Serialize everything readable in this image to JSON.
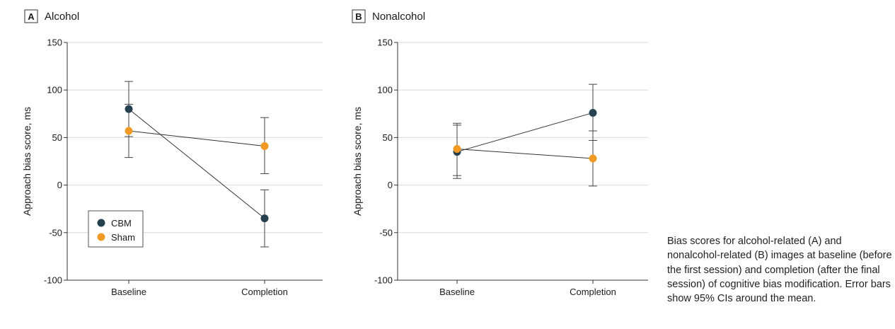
{
  "chart_data": [
    {
      "type": "line",
      "panel_letter": "A",
      "title": "Alcohol",
      "xlabel": "",
      "ylabel": "Approach bias score, ms",
      "categories": [
        "Baseline",
        "Completion"
      ],
      "ylim": [
        -100,
        150
      ],
      "yticks": [
        -100,
        -50,
        0,
        50,
        100,
        150
      ],
      "grid": true,
      "legend": "bottom-left",
      "series": [
        {
          "name": "CBM",
          "color": "#25404f",
          "values": [
            80,
            -35
          ],
          "ci_low": [
            51,
            -65
          ],
          "ci_high": [
            109,
            -5
          ]
        },
        {
          "name": "Sham",
          "color": "#f39a26",
          "values": [
            57,
            41
          ],
          "ci_low": [
            29,
            12
          ],
          "ci_high": [
            85,
            71
          ]
        }
      ]
    },
    {
      "type": "line",
      "panel_letter": "B",
      "title": "Nonalcohol",
      "xlabel": "",
      "ylabel": "Approach bias score, ms",
      "categories": [
        "Baseline",
        "Completion"
      ],
      "ylim": [
        -100,
        150
      ],
      "yticks": [
        -100,
        -50,
        0,
        50,
        100,
        150
      ],
      "grid": true,
      "series": [
        {
          "name": "CBM",
          "color": "#25404f",
          "values": [
            35,
            76
          ],
          "ci_low": [
            7,
            47
          ],
          "ci_high": [
            63,
            106
          ]
        },
        {
          "name": "Sham",
          "color": "#f39a26",
          "values": [
            38,
            28
          ],
          "ci_low": [
            10,
            -1
          ],
          "ci_high": [
            65,
            57
          ]
        }
      ]
    }
  ],
  "caption": "Bias scores for alcohol-related (A) and nonalcohol-related (B) images at baseline (before the first session) and completion (after the final session) of cognitive bias modification. Error bars show 95% CIs around the mean."
}
